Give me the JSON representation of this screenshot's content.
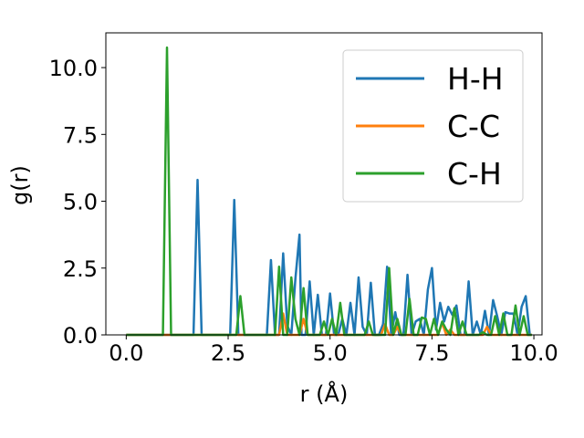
{
  "chart_data": {
    "type": "line",
    "xlabel": "r (Å)",
    "ylabel": "g(r)",
    "xlim": [
      -0.5,
      10.2
    ],
    "ylim": [
      0,
      11.3
    ],
    "xticks": [
      0.0,
      2.5,
      5.0,
      7.5,
      10.0
    ],
    "xtick_labels": [
      "0.0",
      "2.5",
      "5.0",
      "7.5",
      "10.0"
    ],
    "yticks": [
      0.0,
      2.5,
      5.0,
      7.5,
      10.0
    ],
    "ytick_labels": [
      "0.0",
      "2.5",
      "5.0",
      "7.5",
      "10.0"
    ],
    "grid": false,
    "legend_position": "top-right",
    "series": [
      {
        "name": "H-H",
        "color": "#1f77b4",
        "x": [
          0.0,
          1.55,
          1.65,
          1.75,
          1.85,
          2.5,
          2.55,
          2.65,
          2.75,
          3.45,
          3.55,
          3.65,
          3.75,
          3.85,
          3.95,
          4.05,
          4.15,
          4.25,
          4.3,
          4.4,
          4.5,
          4.6,
          4.7,
          4.8,
          4.9,
          5.0,
          5.1,
          5.2,
          5.3,
          5.4,
          5.5,
          5.6,
          5.7,
          5.8,
          5.9,
          6.0,
          6.1,
          6.2,
          6.3,
          6.4,
          6.5,
          6.6,
          6.7,
          6.8,
          6.9,
          7.0,
          7.1,
          7.2,
          7.3,
          7.4,
          7.5,
          7.6,
          7.7,
          7.8,
          7.9,
          8.0,
          8.1,
          8.2,
          8.3,
          8.4,
          8.5,
          8.6,
          8.7,
          8.8,
          8.9,
          9.0,
          9.1,
          9.2,
          9.3,
          9.4,
          9.5,
          9.6,
          9.7,
          9.8,
          9.9
        ],
        "y": [
          0,
          0,
          0,
          5.8,
          0,
          0,
          0,
          5.05,
          0,
          0,
          2.8,
          0,
          0,
          3.05,
          0.35,
          0,
          2.1,
          3.75,
          0,
          0,
          2.0,
          0,
          1.5,
          0,
          0,
          1.55,
          0,
          0,
          0.6,
          0,
          1.2,
          0,
          2.15,
          0.3,
          0,
          1.95,
          0,
          0,
          0.4,
          2.55,
          0,
          0.85,
          0,
          0,
          2.25,
          0,
          0.5,
          0.6,
          0,
          1.7,
          2.5,
          0.2,
          1.2,
          0.5,
          1.05,
          0.75,
          1.1,
          0,
          0,
          2.0,
          0,
          0.5,
          0,
          0.9,
          0,
          1.3,
          0.7,
          0,
          0.85,
          0.8,
          0.8,
          0,
          1.05,
          1.45,
          0
        ]
      },
      {
        "name": "C-C",
        "color": "#ff7f0e",
        "x": [
          0.0,
          3.75,
          3.85,
          3.95,
          4.05,
          4.25,
          4.35,
          4.45,
          6.25,
          6.35,
          6.45,
          6.55,
          6.65,
          6.75,
          7.65,
          7.75,
          7.85,
          7.95,
          8.05,
          8.75,
          8.85,
          8.95,
          9.05,
          9.95
        ],
        "y": [
          0,
          0,
          0.8,
          0,
          0,
          0,
          0.6,
          0,
          0,
          0.4,
          0,
          0,
          0.3,
          0,
          0,
          0.45,
          0,
          0.2,
          0,
          0,
          0.3,
          0,
          0,
          0
        ]
      },
      {
        "name": "C-H",
        "color": "#2ca02c",
        "x": [
          0.0,
          0.9,
          1.0,
          1.1,
          2.7,
          2.8,
          2.9,
          3.55,
          3.65,
          3.75,
          3.85,
          3.95,
          4.05,
          4.15,
          4.25,
          4.35,
          4.45,
          4.55,
          4.65,
          4.75,
          4.85,
          4.95,
          5.05,
          5.15,
          5.25,
          5.35,
          5.45,
          5.55,
          5.65,
          5.75,
          5.85,
          5.95,
          6.05,
          6.15,
          6.25,
          6.35,
          6.45,
          6.55,
          6.65,
          6.75,
          6.85,
          6.95,
          7.05,
          7.15,
          7.25,
          7.35,
          7.45,
          7.55,
          7.65,
          7.75,
          7.85,
          7.95,
          8.05,
          8.15,
          8.25,
          8.35,
          8.45,
          8.55,
          8.65,
          8.75,
          8.85,
          8.95,
          9.05,
          9.15,
          9.25,
          9.35,
          9.45,
          9.55,
          9.65,
          9.75,
          9.85,
          9.95
        ],
        "y": [
          0,
          0,
          10.75,
          0,
          0,
          1.45,
          0,
          0,
          0,
          2.55,
          0,
          0,
          2.15,
          0.6,
          0,
          1.75,
          0,
          0,
          0,
          0,
          0.5,
          0,
          0.6,
          0,
          1.2,
          0,
          0,
          0,
          0,
          0,
          0,
          0.5,
          0,
          0,
          0,
          0,
          2.5,
          0,
          0.6,
          0,
          0,
          1.35,
          0,
          0,
          0.65,
          0.6,
          0,
          0.6,
          0,
          0.5,
          0.2,
          0,
          1.0,
          0,
          0.5,
          0,
          0,
          0,
          0,
          0.1,
          0,
          0,
          0.7,
          0,
          0.8,
          0,
          0,
          1.1,
          0,
          0.7,
          0,
          0
        ]
      }
    ]
  }
}
